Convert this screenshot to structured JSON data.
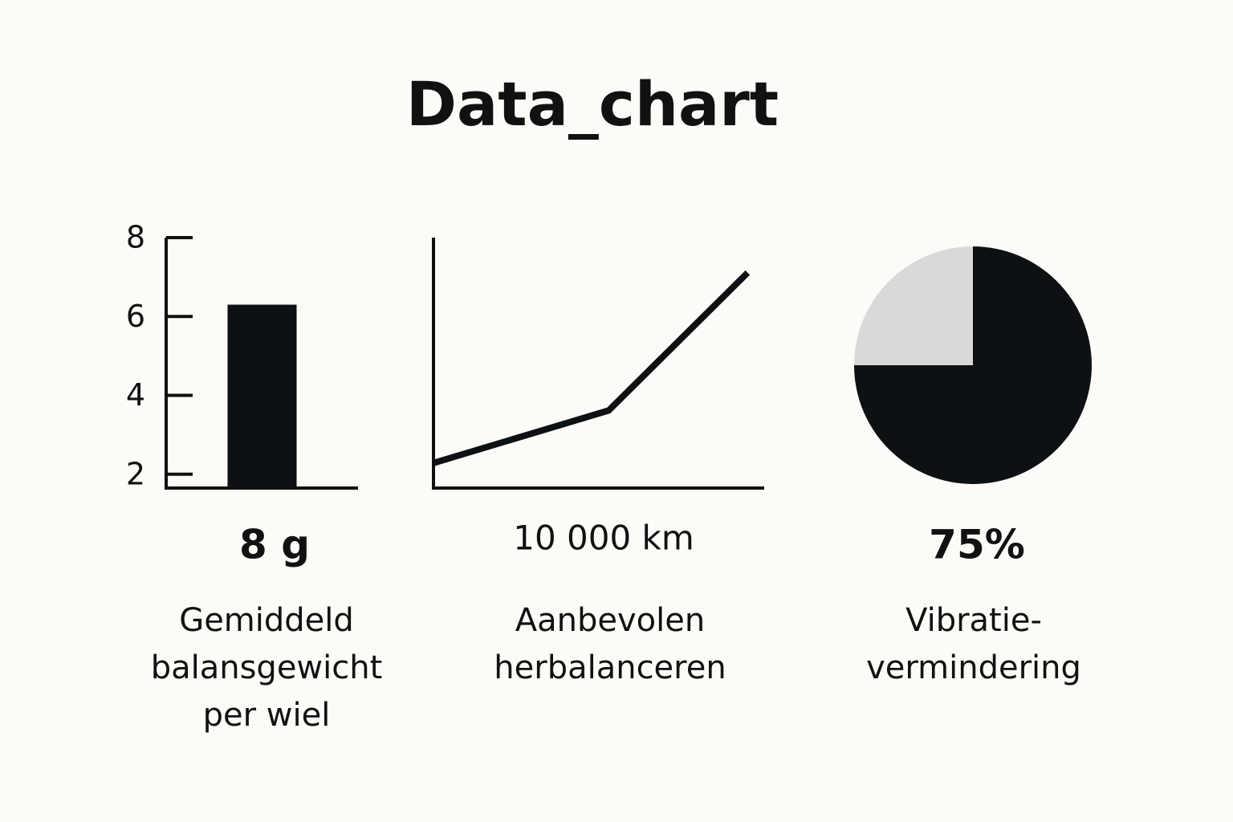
{
  "title": "Data_chart",
  "chart_data": [
    {
      "type": "bar",
      "categories": [
        null
      ],
      "values": [
        6.3
      ],
      "color": "#0d1114",
      "ylim": [
        1.65,
        8
      ],
      "yticks": [
        2,
        4,
        6,
        8
      ],
      "stat": "8 g",
      "caption": [
        "Gemiddeld",
        "balansgewicht",
        "per wiel"
      ]
    },
    {
      "type": "line",
      "x": [
        0,
        5.3,
        9.5
      ],
      "values": [
        1.0,
        3.1,
        8.6
      ],
      "color": "#0d1114",
      "xlim": [
        0,
        10
      ],
      "ylim": [
        0,
        10
      ],
      "stat": "10 000 km",
      "caption": [
        "Aanbevolen",
        "herbalanceren"
      ]
    },
    {
      "type": "pie",
      "values": [
        75,
        25
      ],
      "value_labels": [
        "75%",
        null
      ],
      "colors": [
        "#0d1114",
        "#d9d9d9"
      ],
      "caption": [
        "Vibratie-",
        "vermindering"
      ]
    }
  ]
}
